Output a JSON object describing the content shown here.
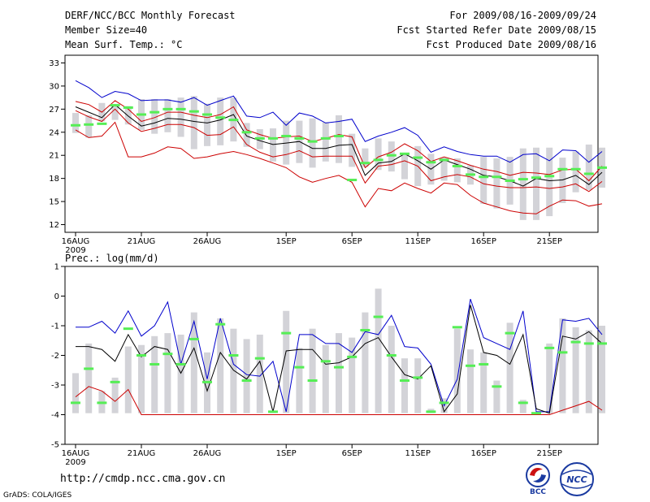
{
  "header": {
    "title": "DERF/NCC/BCC Monthly Forecast",
    "member_size": "Member Size=40",
    "variable": "Mean Surf. Temp.: °C",
    "for_period": "For 2009/08/16-2009/09/24",
    "fcst_started": "Fcst Started Refer Date 2009/08/15",
    "fcst_produced": "Fcst Produced Date 2009/08/16"
  },
  "footer": {
    "url": "http://cmdp.ncc.cma.gov.cn",
    "grads_credit": "GrADS: COLA/IGES",
    "logo_bcc": "BCC",
    "logo_ncc": "NCC"
  },
  "colors": {
    "max_line": "#0000cc",
    "min_line": "#cc0000",
    "mean_line": "#000000",
    "median_mark": "#55ee55",
    "spread_bar": "#d3d3d8"
  },
  "chart_data": [
    {
      "type": "line",
      "ylabel": "Mean Surf. Temp.: °C",
      "ylim": [
        11,
        34
      ],
      "yticks": [
        12,
        15,
        18,
        21,
        24,
        27,
        30,
        33
      ],
      "x_ticks": [
        {
          "day": 0,
          "label": "16AUG",
          "sublabel": "2009"
        },
        {
          "day": 5,
          "label": "21AUG"
        },
        {
          "day": 10,
          "label": "26AUG"
        },
        {
          "day": 16,
          "label": "1SEP"
        },
        {
          "day": 21,
          "label": "6SEP"
        },
        {
          "day": 26,
          "label": "11SEP"
        },
        {
          "day": 31,
          "label": "16SEP"
        },
        {
          "day": 36,
          "label": "21SEP"
        }
      ],
      "series": [
        {
          "name": "max",
          "values": [
            30.7,
            29.8,
            28.5,
            29.3,
            29,
            28.1,
            28.2,
            28.2,
            27.9,
            28.5,
            27.5,
            28.1,
            28.7,
            26.1,
            25.9,
            26.6,
            24.9,
            26.5,
            26.1,
            25.2,
            25.4,
            25.7,
            22.8,
            23.5,
            24,
            24.6,
            23.6,
            21.4,
            22.1,
            21.5,
            21.1,
            20.9,
            20.9,
            20.1,
            21.1,
            21.2,
            20.3,
            21.7,
            21.6,
            20.1,
            21.5
          ]
        },
        {
          "name": "q_upper",
          "values": [
            28,
            27.6,
            26.6,
            28.1,
            27,
            25.4,
            25.9,
            26.6,
            26.6,
            26.2,
            25.9,
            26.3,
            27.3,
            24.3,
            23.7,
            23.2,
            23.4,
            23.5,
            22.8,
            23.2,
            23.7,
            23.4,
            19.4,
            20.8,
            21.4,
            22.5,
            21.6,
            20.2,
            20.8,
            20.3,
            19.7,
            19.2,
            18.9,
            18.4,
            18.8,
            18.7,
            18.5,
            19.1,
            19.2,
            17.7,
            19.6
          ]
        },
        {
          "name": "mean",
          "values": [
            27.3,
            26.6,
            25.9,
            27.6,
            26.1,
            24.8,
            25.2,
            25.8,
            25.7,
            25.4,
            25.2,
            25.6,
            26.3,
            23.5,
            22.9,
            22.4,
            22.6,
            22.8,
            21.9,
            21.9,
            22.3,
            22.4,
            18.4,
            20,
            20.2,
            21.2,
            20.3,
            19.2,
            20.4,
            19.8,
            19.2,
            18.4,
            18.2,
            17.7,
            17,
            18,
            17.7,
            17.8,
            18.4,
            17.2,
            18.8
          ]
        },
        {
          "name": "q_lower",
          "values": [
            26.8,
            26,
            25.4,
            27,
            25.2,
            24.1,
            24.5,
            25,
            25,
            24.6,
            23.6,
            23.7,
            24.7,
            22.4,
            21.4,
            20.8,
            21.1,
            21.6,
            20.8,
            20.9,
            20.9,
            20.9,
            17.4,
            19.6,
            19.8,
            20.3,
            19.6,
            17.7,
            18.2,
            18.5,
            18.2,
            17.3,
            17,
            16.8,
            16.8,
            16.9,
            16.7,
            16.9,
            17.3,
            16.3,
            17.6
          ]
        },
        {
          "name": "min",
          "values": [
            24.3,
            23.3,
            23.5,
            25.3,
            20.8,
            20.8,
            21.3,
            22.1,
            21.9,
            20.6,
            20.8,
            21.2,
            21.5,
            21.1,
            20.6,
            20,
            19.4,
            18.2,
            17.5,
            18,
            18.4,
            17.5,
            14.3,
            16.7,
            16.4,
            17.4,
            16.7,
            16.1,
            17.4,
            17.2,
            15.8,
            14.8,
            14.3,
            13.8,
            13.5,
            13.4,
            14.4,
            15.2,
            15.1,
            14.4,
            14.7
          ]
        },
        {
          "name": "median",
          "values": [
            24.9,
            25,
            25.1,
            27.5,
            27.2,
            26.3,
            26.6,
            27,
            27,
            26.7,
            26.3,
            25.9,
            25.6,
            24,
            23.2,
            23.2,
            23.5,
            23.2,
            22.8,
            23.2,
            23.5,
            17.8,
            20,
            20.4,
            21,
            21.2,
            20.7,
            20.1,
            20.4,
            19.6,
            18.5,
            18.2,
            18.2,
            17.7,
            17.9,
            18.1,
            18.3,
            19.2,
            19.2,
            18.6,
            19.4
          ]
        },
        {
          "name": "spread_top",
          "values": [
            26.5,
            26.2,
            27.8,
            27.6,
            27.4,
            28.3,
            28.3,
            28.3,
            28.5,
            28.7,
            27.7,
            28.5,
            28.5,
            25.2,
            24.4,
            24.5,
            25.5,
            25.5,
            25.8,
            25.3,
            26.2,
            23.8,
            21.9,
            23.2,
            22.8,
            21.2,
            22.2,
            21.2,
            20.7,
            20.6,
            19.7,
            20.8,
            20.6,
            20.8,
            21.9,
            22,
            22,
            20.7,
            21.5,
            22.4,
            22
          ]
        },
        {
          "name": "spread_bottom",
          "values": [
            23.9,
            23.3,
            25.4,
            25.6,
            25,
            24.3,
            23.8,
            24,
            23.4,
            21.8,
            22.2,
            22.3,
            22.8,
            22.1,
            21.8,
            20.2,
            19.8,
            20,
            19.4,
            20.2,
            20,
            19.5,
            19.5,
            19.1,
            18.9,
            17.9,
            17,
            17.2,
            17.7,
            17.5,
            17.2,
            14.7,
            14.1,
            14.6,
            12.6,
            12.6,
            13.1,
            14.8,
            16.2,
            16.5,
            16.8
          ]
        }
      ]
    },
    {
      "type": "line",
      "ylabel": "Prec.: log(mm/d)",
      "ylim": [
        -5,
        1
      ],
      "yticks": [
        -5,
        -4,
        -3,
        -2,
        -1,
        0,
        1
      ],
      "x_ticks": [
        {
          "day": 0,
          "label": "16AUG",
          "sublabel": "2009"
        },
        {
          "day": 5,
          "label": "21AUG"
        },
        {
          "day": 10,
          "label": "26AUG"
        },
        {
          "day": 16,
          "label": "1SEP"
        },
        {
          "day": 21,
          "label": "6SEP"
        },
        {
          "day": 26,
          "label": "11SEP"
        },
        {
          "day": 31,
          "label": "16SEP"
        },
        {
          "day": 36,
          "label": "21SEP"
        }
      ],
      "series": [
        {
          "name": "max",
          "values": [
            -1.05,
            -1.05,
            -0.85,
            -1.25,
            -0.5,
            -1.35,
            -1,
            -0.2,
            -2.3,
            -0.85,
            -2.8,
            -0.75,
            -2.3,
            -2.65,
            -2.7,
            -2.2,
            -3.9,
            -1.3,
            -1.3,
            -1.6,
            -1.6,
            -1.9,
            -1.2,
            -1.3,
            -0.65,
            -1.7,
            -1.75,
            -2.3,
            -3.7,
            -2.8,
            -0.1,
            -1.4,
            -1.6,
            -1.8,
            -0.5,
            -3.9,
            -3.9,
            -0.8,
            -0.85,
            -0.75,
            -1.3
          ]
        },
        {
          "name": "mean",
          "values": [
            -1.7,
            -1.7,
            -1.8,
            -2.2,
            -1.3,
            -2.05,
            -1.7,
            -1.8,
            -2.6,
            -1.75,
            -3.2,
            -1.9,
            -2.5,
            -2.8,
            -2.2,
            -3.9,
            -1.85,
            -1.8,
            -1.8,
            -2.3,
            -2.25,
            -2.05,
            -1.6,
            -1.4,
            -2.05,
            -2.65,
            -2.8,
            -2.35,
            -3.9,
            -3.3,
            -0.3,
            -1.9,
            -2,
            -2.3,
            -1.3,
            -3.8,
            -3.95,
            -1.35,
            -1.45,
            -1.2,
            -1.6
          ]
        },
        {
          "name": "min",
          "values": [
            -3.4,
            -3.05,
            -3.2,
            -3.55,
            -3.15,
            -4,
            -4,
            -4,
            -4,
            -4,
            -4,
            -4,
            -4,
            -4,
            -4,
            -4,
            -4,
            -4,
            -4,
            -4,
            -4,
            -4,
            -4,
            -4,
            -4,
            -4,
            -4,
            -4,
            -4,
            -4,
            -4,
            -4,
            -4,
            -4,
            -4,
            -4,
            -4,
            -3.85,
            -3.7,
            -3.55,
            -3.85
          ]
        },
        {
          "name": "median",
          "values": [
            -3.6,
            -2.45,
            -3.6,
            -2.9,
            -1.1,
            -2,
            -2.3,
            -1.95,
            -2.3,
            -1.45,
            -2.9,
            -0.95,
            -2,
            -2.85,
            -2.1,
            -3.9,
            -1.25,
            -2.4,
            -2.85,
            -2.2,
            -2.4,
            -2.05,
            -1.15,
            -0.7,
            -2,
            -2.85,
            -2.75,
            -3.9,
            -3.6,
            -1.05,
            -2.35,
            -2.3,
            -3.05,
            -1.25,
            -3.6,
            -3.95,
            -1.75,
            -1.9,
            -1.55,
            -1.6,
            -1.6
          ]
        },
        {
          "name": "spread_top",
          "values": [
            -2.6,
            -1.6,
            -3.2,
            -2.75,
            -1.7,
            -1.65,
            -1.35,
            -1.25,
            -1.3,
            -0.55,
            -1.9,
            -0.75,
            -1.1,
            -1.45,
            -1.3,
            -3.9,
            -0.5,
            -1.75,
            -1.1,
            -1.65,
            -1.25,
            -1.4,
            -0.55,
            0.25,
            -1,
            -2.1,
            -2.1,
            -3.8,
            -3.45,
            -1.1,
            -1.8,
            -1.9,
            -2.85,
            -0.9,
            -3.5,
            -3.95,
            -1.6,
            -0.75,
            -1.05,
            -1.15,
            -1
          ]
        },
        {
          "name": "spread_bottom",
          "values": [
            -3.95,
            -3.95,
            -3.95,
            -3.95,
            -3.95,
            -3.95,
            -3.95,
            -3.95,
            -3.95,
            -3.95,
            -3.95,
            -3.95,
            -3.95,
            -3.95,
            -3.95,
            -3.95,
            -3.95,
            -3.95,
            -3.95,
            -3.95,
            -3.95,
            -3.95,
            -3.95,
            -3.95,
            -3.95,
            -3.95,
            -3.95,
            -3.95,
            -3.95,
            -3.95,
            -3.95,
            -3.95,
            -3.95,
            -3.95,
            -3.95,
            -3.95,
            -3.95,
            -3.95,
            -3.95,
            -3.95,
            -3.95
          ]
        }
      ]
    }
  ]
}
